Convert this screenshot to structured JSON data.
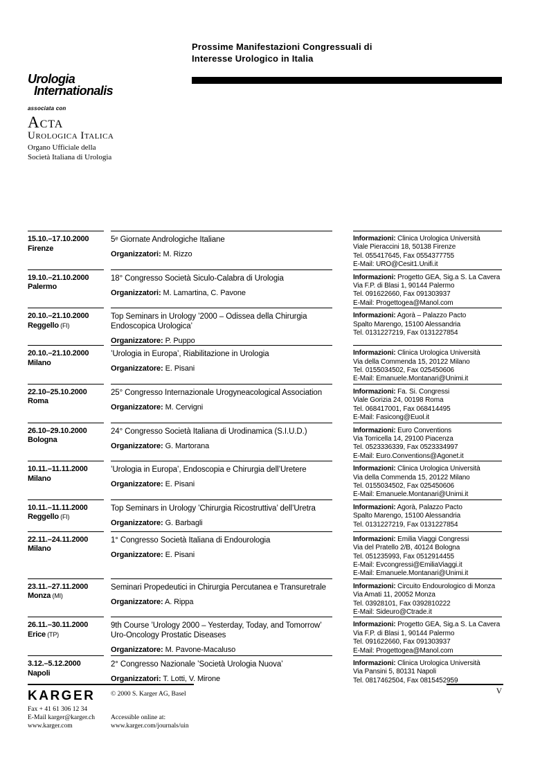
{
  "header": {
    "title": "Prossime Manifestazioni Congressuali di\nInteresse Urologico in Italia"
  },
  "journal": {
    "name_line1": "Urologia",
    "name_line2": "Internationalis",
    "associated": "associata con",
    "acta_line1": "Acta",
    "acta_line2": "Urologica Italica",
    "organo": "Organo Ufficiale della\nSocietà Italiana di Urologia"
  },
  "events": [
    {
      "date": "15.10.–17.10.2000",
      "place": "Firenze",
      "place_suffix": "",
      "title": "5ᵉ Giornate Andrologiche Italiane",
      "organizer_label": "Organizzatori:",
      "organizers": "M. Rizzo",
      "info_label": "Informazioni:",
      "info_org": "Clinica Urologica Università",
      "info_rest": "Viale Pieraccini 18, 50138 Firenze\nTel. 055417645, Fax 0554377755\nE-Mail: URO@Cesit1.Unifi.it"
    },
    {
      "date": "19.10.–21.10.2000",
      "place": "Palermo",
      "place_suffix": "",
      "title": "18° Congresso Società Siculo-Calabra di Urologia",
      "organizer_label": "Organizzatori:",
      "organizers": "M. Lamartina, C. Pavone",
      "info_label": "Informazioni:",
      "info_org": "Progetto GEA, Sig.a S. La Cavera",
      "info_rest": "Via F.P. di Blasi 1, 90144 Palermo\nTel. 091622660, Fax 091303937\nE-Mail: Progettogea@Manol.com"
    },
    {
      "date": "20.10.–21.10.2000",
      "place": "Reggello",
      "place_suffix": " (FI)",
      "title": "Top Seminars in Urology ’2000 – Odissea della Chirurgia Endoscopica Urologica’",
      "organizer_label": "Organizzatore:",
      "organizers": "P. Puppo",
      "info_label": "Informazioni:",
      "info_org": "Agorà – Palazzo Pacto",
      "info_rest": "Spalto Marengo, 15100 Alessandria\nTel. 0131227219, Fax 0131227854"
    },
    {
      "date": "20.10.–21.10.2000",
      "place": "Milano",
      "place_suffix": "",
      "title": "’Urologia in Europa’, Riabilitazione in Urologia",
      "organizer_label": "Organizzatore:",
      "organizers": "E. Pisani",
      "info_label": "Informazioni:",
      "info_org": "Clinica Urologica Università",
      "info_rest": "Via della Commenda 15, 20122 Milano\nTel. 0155034502, Fax 025450606\nE-Mail: Emanuele.Montanari@Unimi.it"
    },
    {
      "date": "22.10–25.10.2000",
      "place": "Roma",
      "place_suffix": "",
      "title": "25° Congresso Internazionale Urogyneacological Association",
      "organizer_label": "Organizzatore:",
      "organizers": "M. Cervigni",
      "info_label": "Informazioni:",
      "info_org": "Fa. Si. Congressi",
      "info_rest": "Viale Gorizia 24, 00198 Roma\nTel. 068417001, Fax 068414495\nE-Mail: Fasicong@Euol.it"
    },
    {
      "date": "26.10–29.10.2000",
      "place": "Bologna",
      "place_suffix": "",
      "title": "24° Congresso Società Italiana di Urodinamica (S.I.U.D.)",
      "organizer_label": "Organizzatore:",
      "organizers": "G. Martorana",
      "info_label": "Informazioni:",
      "info_org": "Euro Conventions",
      "info_rest": "Via Torricella 14, 29100 Piacenza\nTel. 0523336339, Fax 0523334997\nE-Mail: Euro.Conventions@Agonet.it"
    },
    {
      "date": "10.11.–11.11.2000",
      "place": "Milano",
      "place_suffix": "",
      "title": "’Urologia in Europa’, Endoscopia e Chirurgia dell’Uretere",
      "organizer_label": "Organizzatore:",
      "organizers": "E. Pisani",
      "info_label": "Informazioni:",
      "info_org": "Clinica Urologica Università",
      "info_rest": "Via della Commenda 15, 20122 Milano\nTel. 0155034502, Fax 025450606\nE-Mail: Emanuele.Montanari@Unimi.it"
    },
    {
      "date": "10.11.–11.11.2000",
      "place": "Reggello",
      "place_suffix": " (FI)",
      "title": "Top Seminars in Urology ’Chirurgia Ricostruttiva’ dell’Uretra",
      "organizer_label": "Organizzatore:",
      "organizers": "G. Barbagli",
      "info_label": "Informazioni:",
      "info_org": "Agorà, Palazzo Pacto",
      "info_rest": "Spalto Marengo, 15100 Alessandria\nTel. 0131227219, Fax 0131227854"
    },
    {
      "date": "22.11.–24.11.2000",
      "place": "Milano",
      "place_suffix": "",
      "title": "1° Congresso Società Italiana di Endourologia",
      "organizer_label": "Organizzatore:",
      "organizers": "E. Pisani",
      "info_label": "Informazioni:",
      "info_org": "Emilia Viaggi Congressi",
      "info_rest": "Via del Pratello 2/B, 40124 Bologna\nTel. 051235993, Fax 0512914455\nE-Mail: Evcongressi@EmiliaViaggi.it\nE-Mail: Emanuele.Montanari@Unimi.it"
    },
    {
      "date": "23.11.–27.11.2000",
      "place": "Monza",
      "place_suffix": " (MI)",
      "title": "Seminari Propedeutici in Chirurgia Percutanea e Transuretrale",
      "organizer_label": "Organizzatore:",
      "organizers": "A. Rippa",
      "info_label": "Informazioni:",
      "info_org": "Circuito Endourologico di Monza",
      "info_rest": "Via Amati 11, 20052 Monza\nTel. 03928101, Fax 0392810222\nE-Mail: Sideuro@Ctrade.it"
    },
    {
      "date": "26.11.–30.11.2000",
      "place": "Erice",
      "place_suffix": " (TP)",
      "title": "9th Course ’Urology 2000 – Yesterday, Today, and Tomorrow’ Uro-Oncology Prostatic Diseases",
      "organizer_label": "Organizzatore:",
      "organizers": "M. Pavone-Macaluso",
      "info_label": "Informazioni:",
      "info_org": "Progetto GEA, Sig.a S. La Cavera",
      "info_rest": "Via F.P. di Blasi 1, 90144 Palermo\nTel. 091622660, Fax 091303937\nE-Mail: Progettogea@Manol.com"
    },
    {
      "date": "3.12.–5.12.2000",
      "place": "Napoli",
      "place_suffix": "",
      "title": "2° Congresso Nazionale ’Società Urologia Nuova’",
      "organizer_label": "Organizzatori:",
      "organizers": "T. Lotti, V. Mirone",
      "info_label": "Informazioni:",
      "info_org": "Clinica Urologica Università",
      "info_rest": "Via Pansini 5, 80131 Napoli\nTel. 0817462504, Fax 0815452959"
    }
  ],
  "footer": {
    "karger_logo": "KARGER",
    "copyright": "© 2000 S. Karger AG, Basel",
    "contact": "Fax + 41 61 306 12 34\nE-Mail karger@karger.ch\nwww.karger.com",
    "access": "Accessible online at:\nwww.karger.com/journals/uin",
    "page_number": "V"
  }
}
